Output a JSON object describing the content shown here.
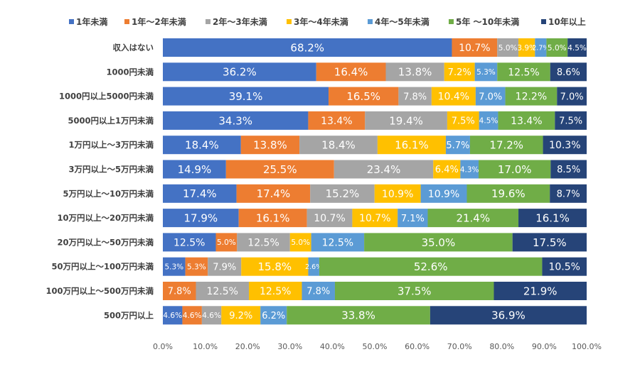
{
  "chart_data": {
    "type": "bar",
    "orientation": "horizontal",
    "stacked": "percent",
    "legend_position": "top",
    "grid": false,
    "xlim": [
      0,
      100
    ],
    "x_ticks": [
      "0.0%",
      "10.0%",
      "20.0%",
      "30.0%",
      "40.0%",
      "50.0%",
      "60.0%",
      "70.0%",
      "80.0%",
      "90.0%",
      "100.0%"
    ],
    "categories": [
      "収入はない",
      "1000円未満",
      "1000円以上5000円未満",
      "5000円以上1万円未満",
      "1万円以上～3万円未満",
      "3万円以上～5万円未満",
      "5万円以上～10万円未満",
      "10万円以上～20万円未満",
      "20万円以上～50万円未満",
      "50万円以上～100万円未満",
      "100万円以上～500万円未満",
      "500万円以上"
    ],
    "series": [
      {
        "name": "1年未満",
        "color": "#4472C4",
        "values": [
          68.2,
          36.2,
          39.1,
          34.3,
          18.4,
          14.9,
          17.4,
          17.9,
          12.5,
          5.3,
          0,
          4.6
        ],
        "labels": [
          "68.2%",
          "36.2%",
          "39.1%",
          "34.3%",
          "18.4%",
          "14.9%",
          "17.4%",
          "17.9%",
          "12.5%",
          "5.3%",
          "",
          "4.6%"
        ]
      },
      {
        "name": "1年～2年未満",
        "color": "#ED7D31",
        "values": [
          10.7,
          16.4,
          16.5,
          13.4,
          13.8,
          25.5,
          17.4,
          16.1,
          5.0,
          5.3,
          7.8,
          4.6
        ],
        "labels": [
          "10.7%",
          "16.4%",
          "16.5%",
          "13.4%",
          "13.8%",
          "25.5%",
          "17.4%",
          "16.1%",
          "5.0%",
          "5.3%",
          "7.8%",
          "4.6%"
        ]
      },
      {
        "name": "2年～3年未満",
        "color": "#A5A5A5",
        "values": [
          5.0,
          13.8,
          7.8,
          19.4,
          18.4,
          23.4,
          15.2,
          10.7,
          12.5,
          7.9,
          12.5,
          4.6
        ],
        "labels": [
          "5.0%",
          "13.8%",
          "7.8%",
          "19.4%",
          "18.4%",
          "23.4%",
          "15.2%",
          "10.7%",
          "12.5%",
          "7.9%",
          "12.5%",
          "4.6%"
        ]
      },
      {
        "name": "3年～4年未満",
        "color": "#FFC000",
        "values": [
          3.9,
          7.2,
          10.4,
          7.5,
          16.1,
          6.4,
          10.9,
          10.7,
          5.0,
          15.8,
          12.5,
          9.2
        ],
        "labels": [
          "3.9%",
          "7.2%",
          "10.4%",
          "7.5%",
          "16.1%",
          "6.4%",
          "10.9%",
          "10.7%",
          "5.0%",
          "15.8%",
          "12.5%",
          "9.2%"
        ]
      },
      {
        "name": "4年～5年未満",
        "color": "#5B9BD5",
        "values": [
          2.7,
          5.3,
          7.0,
          4.5,
          5.7,
          4.3,
          10.9,
          7.1,
          12.5,
          2.6,
          7.8,
          6.2
        ],
        "labels": [
          "2.7%",
          "5.3%",
          "7.0%",
          "4.5%",
          "5.7%",
          "4.3%",
          "10.9%",
          "7.1%",
          "12.5%",
          "2.6%",
          "7.8%",
          "6.2%"
        ]
      },
      {
        "name": "5年 ～10年未満",
        "color": "#70AD47",
        "values": [
          5.0,
          12.5,
          12.2,
          13.4,
          17.2,
          17.0,
          19.6,
          21.4,
          35.0,
          52.6,
          37.5,
          33.8
        ],
        "labels": [
          "5.0%",
          "12.5%",
          "12.2%",
          "13.4%",
          "17.2%",
          "17.0%",
          "19.6%",
          "21.4%",
          "35.0%",
          "52.6%",
          "37.5%",
          "33.8%"
        ]
      },
      {
        "name": "10年以上",
        "color": "#264478",
        "values": [
          4.5,
          8.6,
          7.0,
          7.5,
          10.3,
          8.5,
          8.7,
          16.1,
          17.5,
          10.5,
          21.9,
          36.9
        ],
        "labels": [
          "4.5%",
          "8.6%",
          "7.0%",
          "7.5%",
          "10.3%",
          "8.5%",
          "8.7%",
          "16.1%",
          "17.5%",
          "10.5%",
          "21.9%",
          "36.9%"
        ]
      }
    ]
  }
}
